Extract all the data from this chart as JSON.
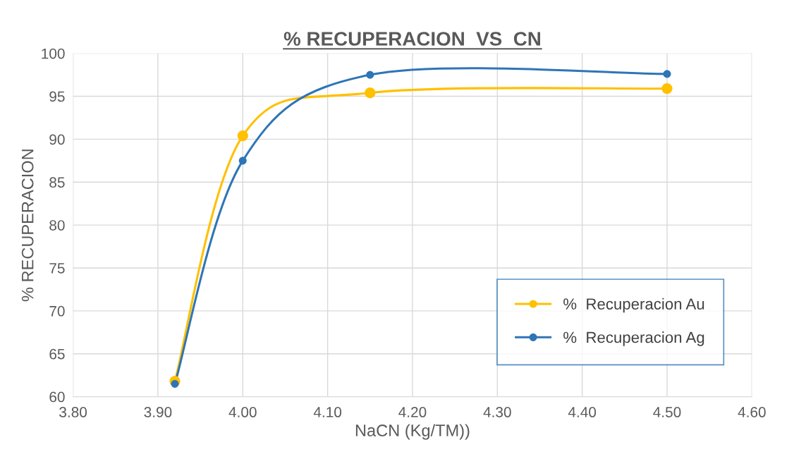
{
  "chart_data": {
    "type": "line",
    "title": "% RECUPERACION  VS  CN",
    "xlabel": "NaCN (Kg/TM))",
    "ylabel": "% RECUPERACION",
    "x": [
      3.92,
      4.0,
      4.15,
      4.5
    ],
    "series": [
      {
        "name": "%  Recuperacion Au",
        "color": "#ffc000",
        "values": [
          61.8,
          90.4,
          95.4,
          95.9
        ]
      },
      {
        "name": "%  Recuperacion Ag",
        "color": "#2e75b6",
        "values": [
          61.5,
          87.5,
          97.5,
          97.6
        ]
      }
    ],
    "xlim": [
      3.8,
      4.6
    ],
    "xticks": [
      {
        "value": 3.8,
        "label": "3.80"
      },
      {
        "value": 3.9,
        "label": "3.90"
      },
      {
        "value": 4.0,
        "label": "4.00"
      },
      {
        "value": 4.1,
        "label": "4.10"
      },
      {
        "value": 4.2,
        "label": "4.20"
      },
      {
        "value": 4.3,
        "label": "4.30"
      },
      {
        "value": 4.4,
        "label": "4.40"
      },
      {
        "value": 4.5,
        "label": "4.50"
      },
      {
        "value": 4.6,
        "label": "4.60"
      }
    ],
    "ylim": [
      60,
      100
    ],
    "yticks": [
      60,
      65,
      70,
      75,
      80,
      85,
      90,
      95,
      100
    ],
    "grid": true,
    "legend": "bottom right",
    "marker": "circle",
    "line_style": "solid"
  }
}
